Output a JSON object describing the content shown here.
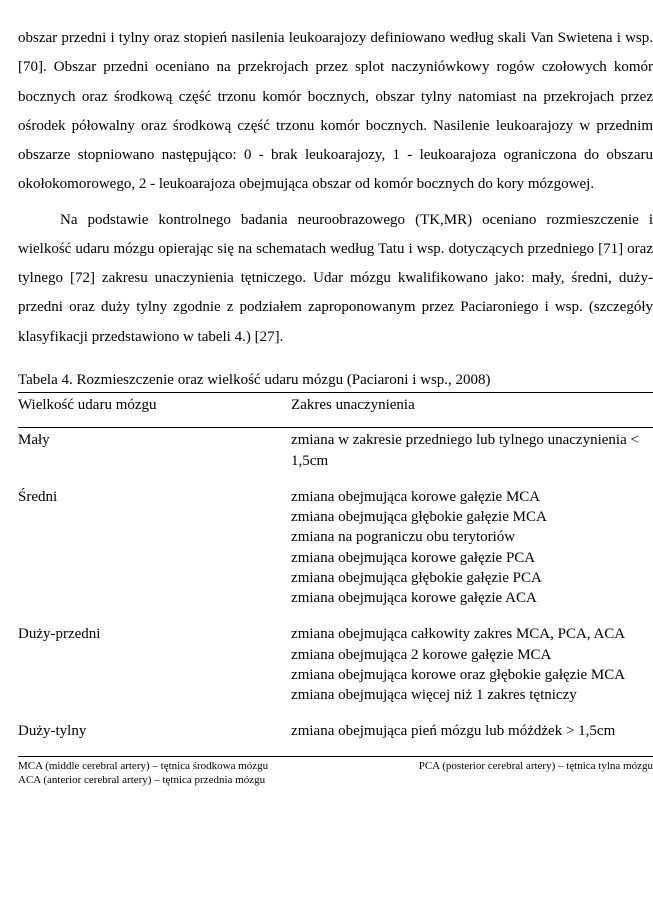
{
  "paragraph1": "obszar przedni i tylny oraz stopień nasilenia leukoarajozy definiowano według skali Van Swietena i wsp. [70]. Obszar przedni oceniano na przekrojach przez splot naczyniówkowy rogów czołowych komór bocznych oraz środkową część trzonu komór bocznych, obszar tylny natomiast na przekrojach przez ośrodek półowalny oraz środkową część trzonu komór bocznych. Nasilenie leukoarajozy w przednim obszarze stopniowano następująco: 0 - brak leukoarajozy, 1 - leukoarajoza ograniczona do obszaru okołokomorowego, 2 - leukoarajoza obejmująca obszar od komór bocznych do kory mózgowej.",
  "paragraph2": "Na podstawie kontrolnego badania neuroobrazowego (TK,MR) oceniano rozmieszczenie i wielkość udaru mózgu opierając się na schematach według Tatu i wsp. dotyczących przedniego [71] oraz tylnego [72] zakresu unaczynienia tętniczego. Udar mózgu kwalifikowano jako: mały, średni, duży-przedni oraz duży tylny zgodnie z podziałem zaproponowanym przez Paciaroniego i wsp. (szczegóły klasyfikacji przedstawiono w tabeli 4.) [27].",
  "tableCaption": "Tabela 4. Rozmieszczenie oraz wielkość udaru mózgu (Paciaroni i wsp., 2008)",
  "table": {
    "headers": {
      "size": "Wielkość udaru mózgu",
      "range": "Zakres unaczynienia"
    },
    "rows": [
      {
        "size": "Mały",
        "range": "zmiana w zakresie przedniego lub tylnego unaczynienia < 1,5cm"
      },
      {
        "size": "Średni",
        "range": "zmiana obejmująca korowe gałęzie MCA\nzmiana obejmująca głębokie gałęzie MCA\nzmiana na pograniczu obu terytoriów\nzmiana obejmująca korowe gałęzie PCA\nzmiana obejmująca głębokie gałęzie PCA\nzmiana obejmująca korowe gałęzie ACA"
      },
      {
        "size": "Duży-przedni",
        "range": "zmiana obejmująca całkowity zakres MCA, PCA, ACA\nzmiana obejmująca 2 korowe gałęzie MCA\nzmiana obejmująca korowe oraz głębokie gałęzie MCA\nzmiana obejmująca więcej niż 1 zakres tętniczy"
      },
      {
        "size": "Duży-tylny",
        "range": "zmiana obejmująca pień mózgu lub móżdżek > 1,5cm"
      }
    ]
  },
  "footnotes": {
    "left": "MCA (middle cerebral artery) – tętnica środkowa mózgu",
    "right": "PCA (posterior cerebral artery) – tętnica tylna mózgu",
    "second": "ACA (anterior cerebral artery) – tętnica przednia mózgu"
  }
}
